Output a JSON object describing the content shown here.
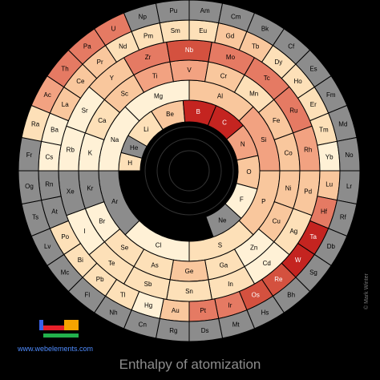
{
  "title": "Enthalpy of atomization",
  "site": "www.webelements.com",
  "credit": "© Mark Winter",
  "colors": {
    "background": "#000000",
    "no_data": "#8c8c8c",
    "scale": [
      "#fff1d6",
      "#fde0b8",
      "#f9c79d",
      "#f2a281",
      "#e57a63",
      "#d4513f",
      "#c42420"
    ]
  },
  "chart_data": {
    "type": "spiral-periodic-table",
    "title": "Enthalpy of atomization",
    "xlabel": "",
    "ylabel": "",
    "elements": [
      {
        "symbol": "H",
        "level": 1
      },
      {
        "symbol": "He",
        "level": null
      },
      {
        "symbol": "Li",
        "level": 1
      },
      {
        "symbol": "Be",
        "level": 2
      },
      {
        "symbol": "B",
        "level": 6
      },
      {
        "symbol": "C",
        "level": 6
      },
      {
        "symbol": "N",
        "level": 3
      },
      {
        "symbol": "O",
        "level": 2
      },
      {
        "symbol": "F",
        "level": 0
      },
      {
        "symbol": "Ne",
        "level": null
      },
      {
        "symbol": "Na",
        "level": 0
      },
      {
        "symbol": "Mg",
        "level": 0
      },
      {
        "symbol": "Al",
        "level": 2
      },
      {
        "symbol": "Si",
        "level": 3
      },
      {
        "symbol": "P",
        "level": 2
      },
      {
        "symbol": "S",
        "level": 1
      },
      {
        "symbol": "Cl",
        "level": 0
      },
      {
        "symbol": "Ar",
        "level": null
      },
      {
        "symbol": "K",
        "level": 0
      },
      {
        "symbol": "Ca",
        "level": 1
      },
      {
        "symbol": "Sc",
        "level": 2
      },
      {
        "symbol": "Ti",
        "level": 3
      },
      {
        "symbol": "V",
        "level": 3
      },
      {
        "symbol": "Cr",
        "level": 2
      },
      {
        "symbol": "Mn",
        "level": 1
      },
      {
        "symbol": "Fe",
        "level": 2
      },
      {
        "symbol": "Co",
        "level": 2
      },
      {
        "symbol": "Ni",
        "level": 2
      },
      {
        "symbol": "Cu",
        "level": 2
      },
      {
        "symbol": "Zn",
        "level": 0
      },
      {
        "symbol": "Ga",
        "level": 1
      },
      {
        "symbol": "Ge",
        "level": 2
      },
      {
        "symbol": "As",
        "level": 1
      },
      {
        "symbol": "Se",
        "level": 1
      },
      {
        "symbol": "Br",
        "level": 0
      },
      {
        "symbol": "Kr",
        "level": null
      },
      {
        "symbol": "Rb",
        "level": 0
      },
      {
        "symbol": "Sr",
        "level": 0
      },
      {
        "symbol": "Y",
        "level": 2
      },
      {
        "symbol": "Zr",
        "level": 4
      },
      {
        "symbol": "Nb",
        "level": 5
      },
      {
        "symbol": "Mo",
        "level": 4
      },
      {
        "symbol": "Tc",
        "level": 4
      },
      {
        "symbol": "Ru",
        "level": 4
      },
      {
        "symbol": "Rh",
        "level": 3
      },
      {
        "symbol": "Pd",
        "level": 2
      },
      {
        "symbol": "Ag",
        "level": 1
      },
      {
        "symbol": "Cd",
        "level": 0
      },
      {
        "symbol": "In",
        "level": 1
      },
      {
        "symbol": "Sn",
        "level": 1
      },
      {
        "symbol": "Sb",
        "level": 1
      },
      {
        "symbol": "Te",
        "level": 1
      },
      {
        "symbol": "I",
        "level": 0
      },
      {
        "symbol": "Xe",
        "level": null
      },
      {
        "symbol": "Cs",
        "level": 0
      },
      {
        "symbol": "Ba",
        "level": 0
      },
      {
        "symbol": "La",
        "level": 2
      },
      {
        "symbol": "Ce",
        "level": 2
      },
      {
        "symbol": "Pr",
        "level": 2
      },
      {
        "symbol": "Nd",
        "level": 1
      },
      {
        "symbol": "Pm",
        "level": 1
      },
      {
        "symbol": "Sm",
        "level": 1
      },
      {
        "symbol": "Eu",
        "level": 1
      },
      {
        "symbol": "Gd",
        "level": 2
      },
      {
        "symbol": "Tb",
        "level": 2
      },
      {
        "symbol": "Dy",
        "level": 1
      },
      {
        "symbol": "Ho",
        "level": 1
      },
      {
        "symbol": "Er",
        "level": 1
      },
      {
        "symbol": "Tm",
        "level": 1
      },
      {
        "symbol": "Yb",
        "level": 0
      },
      {
        "symbol": "Lu",
        "level": 2
      },
      {
        "symbol": "Hf",
        "level": 4
      },
      {
        "symbol": "Ta",
        "level": 6
      },
      {
        "symbol": "W",
        "level": 6
      },
      {
        "symbol": "Re",
        "level": 5
      },
      {
        "symbol": "Os",
        "level": 5
      },
      {
        "symbol": "Ir",
        "level": 4
      },
      {
        "symbol": "Pt",
        "level": 4
      },
      {
        "symbol": "Au",
        "level": 2
      },
      {
        "symbol": "Hg",
        "level": 0
      },
      {
        "symbol": "Tl",
        "level": 1
      },
      {
        "symbol": "Pb",
        "level": 1
      },
      {
        "symbol": "Bi",
        "level": 1
      },
      {
        "symbol": "Po",
        "level": 1
      },
      {
        "symbol": "At",
        "level": null
      },
      {
        "symbol": "Rn",
        "level": null
      },
      {
        "symbol": "Fr",
        "level": null
      },
      {
        "symbol": "Ra",
        "level": 1
      },
      {
        "symbol": "Ac",
        "level": 3
      },
      {
        "symbol": "Th",
        "level": 4
      },
      {
        "symbol": "Pa",
        "level": 4
      },
      {
        "symbol": "U",
        "level": 4
      },
      {
        "symbol": "Np",
        "level": null
      },
      {
        "symbol": "Pu",
        "level": null
      },
      {
        "symbol": "Am",
        "level": null
      },
      {
        "symbol": "Cm",
        "level": null
      },
      {
        "symbol": "Bk",
        "level": null
      },
      {
        "symbol": "Cf",
        "level": null
      },
      {
        "symbol": "Es",
        "level": null
      },
      {
        "symbol": "Fm",
        "level": null
      },
      {
        "symbol": "Md",
        "level": null
      },
      {
        "symbol": "No",
        "level": null
      },
      {
        "symbol": "Lr",
        "level": null
      },
      {
        "symbol": "Rf",
        "level": null
      },
      {
        "symbol": "Db",
        "level": null
      },
      {
        "symbol": "Sg",
        "level": null
      },
      {
        "symbol": "Bh",
        "level": null
      },
      {
        "symbol": "Hs",
        "level": null
      },
      {
        "symbol": "Mt",
        "level": null
      },
      {
        "symbol": "Ds",
        "level": null
      },
      {
        "symbol": "Rg",
        "level": null
      },
      {
        "symbol": "Cn",
        "level": null
      },
      {
        "symbol": "Nh",
        "level": null
      },
      {
        "symbol": "Fl",
        "level": null
      },
      {
        "symbol": "Mc",
        "level": null
      },
      {
        "symbol": "Lv",
        "level": null
      },
      {
        "symbol": "Ts",
        "level": null
      },
      {
        "symbol": "Og",
        "level": null
      }
    ]
  }
}
